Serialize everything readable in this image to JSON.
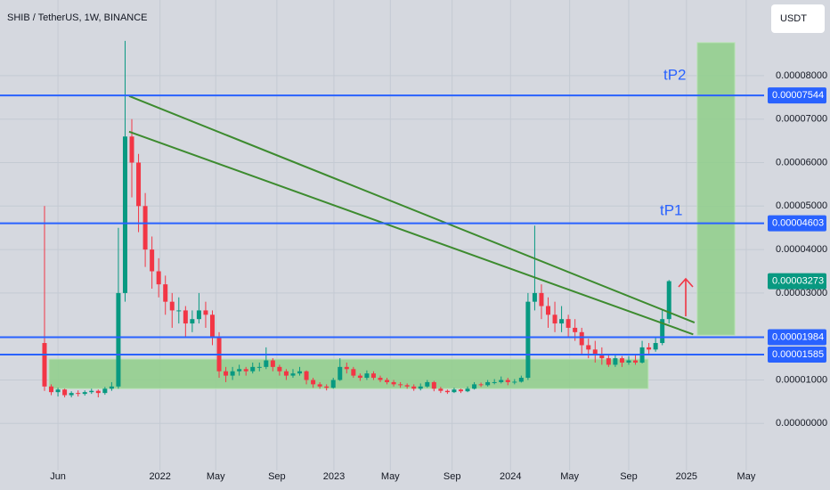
{
  "chart_data": {
    "type": "candlestick",
    "title": "SHIB / TetherUS, 1W, BINANCE",
    "currency_button": "USDT",
    "up_color": "#089981",
    "down_color": "#f23645",
    "level_color": "#2962ff",
    "grid": true,
    "open": [
      1.85e-05,
      8.5e-06,
      7.2e-06,
      7.8e-06,
      6.5e-06,
      7e-06,
      6.8e-06,
      7.2e-06,
      7.5e-06,
      7e-06,
      8e-06,
      8.5e-06,
      3e-05,
      6.6e-05,
      6e-05,
      5e-05,
      4e-05,
      3.5e-05,
      3.2e-05,
      2.8e-05,
      2.6e-05,
      2.6e-05,
      2.3e-05,
      2.4e-05,
      2.6e-05,
      2.5e-05,
      2e-05,
      1.2e-05,
      1.1e-05,
      1.2e-05,
      1.25e-05,
      1.2e-05,
      1.3e-05,
      1.3e-05,
      1.45e-05,
      1.3e-05,
      1.2e-05,
      1.1e-05,
      1.15e-05,
      1.2e-05,
      1e-05,
      9e-06,
      8.5e-06,
      8.2e-06,
      1e-05,
      1.3e-05,
      1.25e-05,
      1.1e-05,
      1.05e-05,
      1.15e-05,
      1.05e-05,
      1e-05,
      9.5e-06,
      9e-06,
      8.8e-06,
      8.5e-06,
      8e-06,
      8.5e-06,
      9.5e-06,
      8e-06,
      7.5e-06,
      7.2e-06,
      7.8e-06,
      7.4e-06,
      8e-06,
      9e-06,
      8.8e-06,
      9.5e-06,
      9.5e-06,
      1e-05,
      9.5e-06,
      9.6e-06,
      1.05e-05,
      2.8e-05,
      3e-05,
      2.7e-05,
      2.5e-05,
      2.3e-05,
      2.4e-05,
      2.2e-05,
      2.1e-05,
      1.8e-05,
      1.7e-05,
      1.6e-05,
      1.5e-05,
      1.35e-05,
      1.5e-05,
      1.4e-05,
      1.45e-05,
      1.4e-05,
      1.75e-05,
      1.7e-05,
      1.85e-05,
      2.4e-05
    ],
    "high": [
      5e-05,
      9e-06,
      8.2e-06,
      8e-06,
      7.4e-06,
      7.6e-06,
      7.6e-06,
      8e-06,
      7.8e-06,
      8.4e-06,
      9.5e-06,
      4.5e-05,
      8.8e-05,
      7e-05,
      6.2e-05,
      5.3e-05,
      4.3e-05,
      3.8e-05,
      3.4e-05,
      3e-05,
      2.9e-05,
      2.7e-05,
      2.6e-05,
      3e-05,
      2.8e-05,
      2.6e-05,
      2.1e-05,
      1.3e-05,
      1.3e-05,
      1.35e-05,
      1.3e-05,
      1.4e-05,
      1.4e-05,
      1.75e-05,
      1.5e-05,
      1.35e-05,
      1.25e-05,
      1.25e-05,
      1.3e-05,
      1.22e-05,
      1.05e-05,
      9.5e-06,
      9e-06,
      1.05e-05,
      1.5e-05,
      1.4e-05,
      1.3e-05,
      1.15e-05,
      1.22e-05,
      1.2e-05,
      1.1e-05,
      1.05e-05,
      1e-05,
      9.5e-06,
      9.2e-06,
      9e-06,
      9.2e-06,
      1e-05,
      9.8e-06,
      8.4e-06,
      7.8e-06,
      8.2e-06,
      8e-06,
      8.5e-06,
      9.5e-06,
      9.4e-06,
      1e-05,
      1.02e-05,
      1.08e-05,
      1.05e-05,
      1.02e-05,
      1.1e-05,
      3e-05,
      4.55e-05,
      3.2e-05,
      2.9e-05,
      2.8e-05,
      2.7e-05,
      2.5e-05,
      2.4e-05,
      2.2e-05,
      1.95e-05,
      1.9e-05,
      1.75e-05,
      1.6e-05,
      1.6e-05,
      1.55e-05,
      1.55e-05,
      1.6e-05,
      1.9e-05,
      1.85e-05,
      2e-05,
      2.6e-05,
      3.3e-05
    ],
    "low": [
      7.5e-06,
      6.5e-06,
      6.2e-06,
      6e-06,
      6e-06,
      6.2e-06,
      6.4e-06,
      6.8e-06,
      6e-06,
      6.6e-06,
      7.5e-06,
      8e-06,
      2.8e-05,
      5.2e-05,
      4.4e-05,
      3.6e-05,
      3.1e-05,
      2.9e-05,
      2.5e-05,
      2.2e-05,
      2.3e-05,
      2e-05,
      2.1e-05,
      2.3e-05,
      2.2e-05,
      1.8e-05,
      1.05e-05,
      9.5e-06,
      1e-05,
      1.1e-05,
      1.1e-05,
      1.15e-05,
      1.2e-05,
      1.25e-05,
      1.2e-05,
      1.1e-05,
      1e-05,
      1.05e-05,
      1.1e-05,
      9e-06,
      8.2e-06,
      8e-06,
      7.6e-06,
      8e-06,
      9.8e-06,
      1.15e-05,
      1.05e-05,
      9.8e-06,
      1e-05,
      1e-05,
      9.5e-06,
      9e-06,
      8.5e-06,
      8.2e-06,
      8e-06,
      7.5e-06,
      7.6e-06,
      8.2e-06,
      7.4e-06,
      7e-06,
      6.8e-06,
      7e-06,
      7e-06,
      7.2e-06,
      7.8e-06,
      8.4e-06,
      8.5e-06,
      9e-06,
      9.2e-06,
      8.8e-06,
      9e-06,
      9.4e-06,
      1e-05,
      2.6e-05,
      2.4e-05,
      2.2e-05,
      2.1e-05,
      2.1e-05,
      2e-05,
      1.9e-05,
      1.6e-05,
      1.5e-05,
      1.4e-05,
      1.35e-05,
      1.3e-05,
      1.3e-05,
      1.3e-05,
      1.35e-05,
      1.35e-05,
      1.38e-05,
      1.6e-05,
      1.65e-05,
      1.8e-05,
      2.3e-05
    ],
    "close": [
      8.5e-06,
      7.2e-06,
      7.8e-06,
      6.5e-06,
      7e-06,
      6.8e-06,
      7.2e-06,
      7.5e-06,
      7e-06,
      8e-06,
      8.5e-06,
      3e-05,
      6.6e-05,
      6e-05,
      5e-05,
      4e-05,
      3.5e-05,
      3.2e-05,
      2.8e-05,
      2.6e-05,
      2.6e-05,
      2.3e-05,
      2.4e-05,
      2.6e-05,
      2.5e-05,
      2e-05,
      1.2e-05,
      1.1e-05,
      1.2e-05,
      1.25e-05,
      1.2e-05,
      1.3e-05,
      1.3e-05,
      1.45e-05,
      1.3e-05,
      1.2e-05,
      1.1e-05,
      1.15e-05,
      1.2e-05,
      1e-05,
      9e-06,
      8.5e-06,
      8.2e-06,
      1e-05,
      1.3e-05,
      1.25e-05,
      1.1e-05,
      1.05e-05,
      1.15e-05,
      1.05e-05,
      1e-05,
      9.5e-06,
      9e-06,
      8.8e-06,
      8.5e-06,
      8e-06,
      8.5e-06,
      9.5e-06,
      8e-06,
      7.5e-06,
      7.2e-06,
      7.8e-06,
      7.4e-06,
      8e-06,
      9e-06,
      8.8e-06,
      9.5e-06,
      9.5e-06,
      1e-05,
      9.5e-06,
      9.6e-06,
      1.05e-05,
      2.8e-05,
      3e-05,
      2.7e-05,
      2.5e-05,
      2.3e-05,
      2.4e-05,
      2.2e-05,
      2.1e-05,
      1.8e-05,
      1.7e-05,
      1.6e-05,
      1.5e-05,
      1.35e-05,
      1.5e-05,
      1.4e-05,
      1.45e-05,
      1.4e-05,
      1.75e-05,
      1.7e-05,
      1.85e-05,
      2.4e-05,
      3.273e-05
    ],
    "last_price_label": "0.00003273",
    "xlim": [
      -6.63,
      107.16
    ],
    "xticks": [
      {
        "value": 2,
        "label": "Jun"
      },
      {
        "value": 17.2,
        "label": "2022"
      },
      {
        "value": 25.5,
        "label": "May"
      },
      {
        "value": 34.6,
        "label": "Sep"
      },
      {
        "value": 43.1,
        "label": "2023"
      },
      {
        "value": 51.5,
        "label": "May"
      },
      {
        "value": 60.7,
        "label": "Sep"
      },
      {
        "value": 69.4,
        "label": "2024"
      },
      {
        "value": 78.2,
        "label": "May"
      },
      {
        "value": 87,
        "label": "Sep"
      },
      {
        "value": 95.6,
        "label": "2025"
      },
      {
        "value": 104.5,
        "label": "May"
      }
    ],
    "ylim": [
      -1.08e-05,
      9.74e-05
    ],
    "yticks": [
      {
        "value": 0,
        "label": "0.00000000"
      },
      {
        "value": 1e-05,
        "label": "0.00001000"
      },
      {
        "value": 3e-05,
        "label": "0.00003000"
      },
      {
        "value": 4e-05,
        "label": "0.00004000"
      },
      {
        "value": 5e-05,
        "label": "0.00005000"
      },
      {
        "value": 6e-05,
        "label": "0.00006000"
      },
      {
        "value": 7e-05,
        "label": "0.00007000"
      },
      {
        "value": 8e-05,
        "label": "0.00008000"
      }
    ],
    "levels": [
      {
        "value": 7.544e-05,
        "label": "0.00007544"
      },
      {
        "value": 4.603e-05,
        "label": "0.00004603"
      },
      {
        "value": 1.984e-05,
        "label": "0.00001984"
      },
      {
        "value": 1.585e-05,
        "label": "0.00001585"
      }
    ],
    "annotations": [
      "tP2",
      "tP1"
    ],
    "trendlines": [
      {
        "color": "#3d8b2f",
        "x": [
          12.6,
          96.8
        ],
        "y": [
          7.53e-05,
          2.32e-05
        ]
      },
      {
        "color": "#3d8b2f",
        "x": [
          12.6,
          96.6
        ],
        "y": [
          6.71e-05,
          2.05e-05
        ]
      }
    ],
    "boxes": [
      {
        "color": "#8fcf8a",
        "x": [
          0.66,
          89.9
        ],
        "y": [
          1.48e-05,
          8e-06
        ]
      },
      {
        "color": "#8fcf8a",
        "x": [
          97.2,
          102.8
        ],
        "y": [
          8.76e-05,
          2.03e-05
        ]
      }
    ]
  }
}
